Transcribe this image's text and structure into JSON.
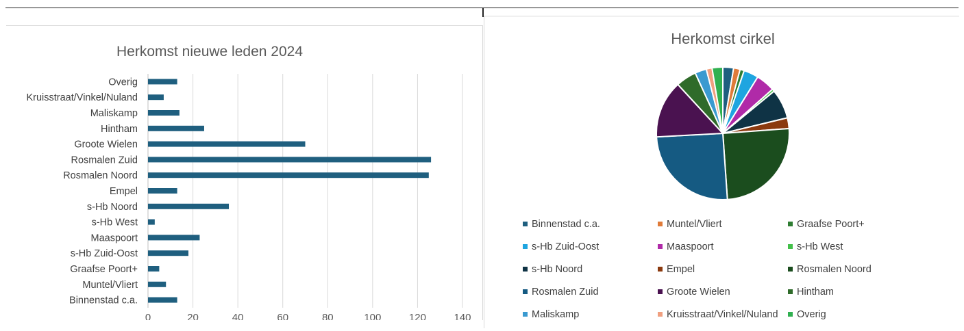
{
  "charts": {
    "bar": {
      "title": "Herkomst nieuwe leden 2024"
    },
    "pie": {
      "title": "Herkomst cirkel"
    }
  },
  "chart_data": [
    {
      "type": "bar",
      "orientation": "horizontal",
      "title": "Herkomst nieuwe leden 2024",
      "categories": [
        "Binnenstad c.a.",
        "Muntel/Vliert",
        "Graafse Poort+",
        "s-Hb Zuid-Oost",
        "Maaspoort",
        "s-Hb West",
        "s-Hb Noord",
        "Empel",
        "Rosmalen Noord",
        "Rosmalen Zuid",
        "Groote Wielen",
        "Hintham",
        "Maliskamp",
        "Kruisstraat/Vinkel/Nuland",
        "Overig"
      ],
      "values": [
        13,
        8,
        5,
        18,
        23,
        3,
        36,
        13,
        125,
        126,
        70,
        25,
        14,
        7,
        13
      ],
      "xlim": [
        0,
        140
      ],
      "xticks": [
        0,
        20,
        40,
        60,
        80,
        100,
        120,
        140
      ],
      "grid": true,
      "bar_color": "#1f5f7f"
    },
    {
      "type": "pie",
      "title": "Herkomst cirkel",
      "categories": [
        "Binnenstad c.a.",
        "Muntel/Vliert",
        "Graafse Poort+",
        "s-Hb Zuid-Oost",
        "Maaspoort",
        "s-Hb West",
        "s-Hb Noord",
        "Empel",
        "Rosmalen Noord",
        "Rosmalen Zuid",
        "Groote Wielen",
        "Hintham",
        "Maliskamp",
        "Kruisstraat/Vinkel/Nuland",
        "Overig"
      ],
      "values": [
        13,
        8,
        5,
        18,
        23,
        3,
        36,
        13,
        125,
        126,
        70,
        25,
        14,
        7,
        13
      ],
      "colors": [
        "#1f5f7f",
        "#e07b39",
        "#2e7d32",
        "#1ea5e0",
        "#b02aa8",
        "#43c04a",
        "#0f3345",
        "#8b3a0f",
        "#1b4d1e",
        "#155a82",
        "#4a1250",
        "#2f6b2a",
        "#3a9ad0",
        "#f0a080",
        "#30b050"
      ],
      "legend_position": "bottom"
    }
  ]
}
